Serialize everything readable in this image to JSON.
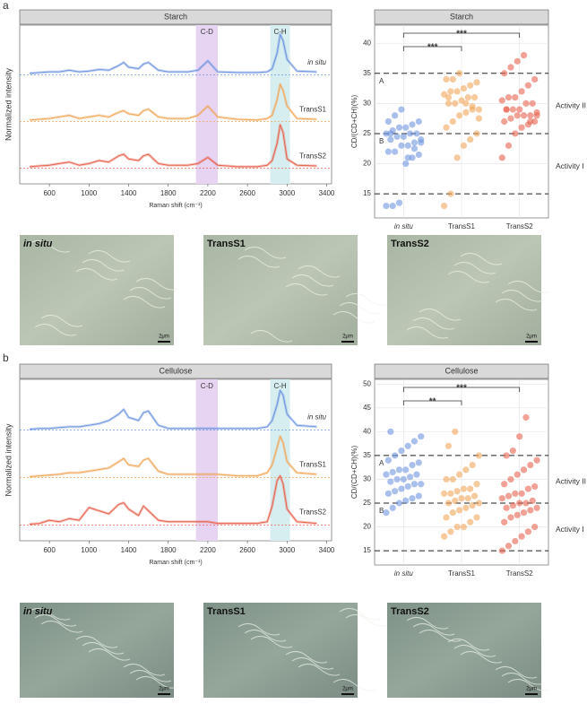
{
  "panels": [
    {
      "label": "a",
      "micrographs": [
        "in situ",
        "TransS1",
        "TransS2"
      ],
      "scale_bar": "2μm"
    },
    {
      "label": "b",
      "micrographs": [
        "in situ",
        "TransS1",
        "TransS2"
      ],
      "scale_bar": "2μm"
    }
  ],
  "chart_data": [
    {
      "type": "line",
      "title": "Starch",
      "xlabel": "Raman shift (cm⁻¹)",
      "ylabel": "Normalized intensity",
      "x": [
        400,
        500,
        600,
        700,
        800,
        900,
        1000,
        1100,
        1200,
        1300,
        1350,
        1400,
        1500,
        1550,
        1600,
        1700,
        1800,
        2000,
        2100,
        2200,
        2300,
        2500,
        2700,
        2800,
        2850,
        2900,
        2930,
        2960,
        3000,
        3100,
        3300
      ],
      "xlim": [
        300,
        3450
      ],
      "xticks": [
        600,
        1000,
        1400,
        1800,
        2200,
        2600,
        3000,
        3400
      ],
      "ylim": [
        0,
        10.2
      ],
      "bands": [
        {
          "label": "C-D",
          "range": [
            2080,
            2300
          ],
          "color": "#e7d3f2"
        },
        {
          "label": "C-H",
          "range": [
            2830,
            3030
          ],
          "color": "#d7eef0"
        }
      ],
      "series": [
        {
          "name": "in situ",
          "color": "#6f95e0",
          "baseline": 7,
          "values": [
            7.1,
            7.15,
            7.2,
            7.2,
            7.3,
            7.2,
            7.25,
            7.35,
            7.3,
            7.6,
            7.8,
            7.5,
            7.4,
            7.7,
            7.8,
            7.3,
            7.2,
            7.2,
            7.3,
            7.9,
            7.2,
            7.15,
            7.15,
            7.2,
            7.4,
            8.4,
            9.6,
            9.2,
            8,
            7.25,
            7.2
          ]
        },
        {
          "name": "TransS1",
          "color": "#f0a65a",
          "baseline": 4,
          "values": [
            4.1,
            4.15,
            4.2,
            4.3,
            4.4,
            4.2,
            4.3,
            4.4,
            4.3,
            4.6,
            4.7,
            4.5,
            4.4,
            4.7,
            4.8,
            4.3,
            4.2,
            4.2,
            4.4,
            5,
            4.3,
            4.15,
            4.1,
            4.2,
            4.4,
            5.4,
            6.4,
            6,
            5,
            4.2,
            4.15
          ]
        },
        {
          "name": "TransS2",
          "color": "#e8624e",
          "baseline": 1,
          "values": [
            1.1,
            1.15,
            1.2,
            1.3,
            1.4,
            1.2,
            1.3,
            1.5,
            1.4,
            1.8,
            1.9,
            1.6,
            1.5,
            1.8,
            1.9,
            1.3,
            1.2,
            1.2,
            1.3,
            1.7,
            1.2,
            1.1,
            1.1,
            1.2,
            1.5,
            2.6,
            3.8,
            3.3,
            1.6,
            1.2,
            1.15
          ]
        }
      ]
    },
    {
      "type": "strip",
      "title": "Starch",
      "ylabel": "CD/(CD+CH)(%)",
      "categories": [
        "in situ",
        "TransS1",
        "TransS2"
      ],
      "ylim": [
        11,
        43
      ],
      "yticks": [
        15,
        20,
        25,
        30,
        35,
        40
      ],
      "grid": true,
      "regions": [
        {
          "range": [
            25,
            35
          ],
          "label": "A",
          "activity": "Activity II"
        },
        {
          "range": [
            15,
            25
          ],
          "label": "B",
          "activity": "Activity I"
        }
      ],
      "brackets": [
        {
          "pair": [
            "in situ",
            "TransS1"
          ],
          "label": "***"
        },
        {
          "pair": [
            "in situ",
            "TransS2"
          ],
          "label": "***"
        }
      ],
      "series": [
        {
          "name": "in situ",
          "color": "#6f95e0",
          "values": [
            13,
            13,
            13.5,
            20,
            21,
            21.5,
            22,
            22,
            23,
            23,
            23.5,
            24,
            24,
            24.5,
            24.5,
            25,
            25,
            25,
            25.5,
            26,
            26,
            26.5,
            27,
            27,
            28,
            29,
            21,
            22.5,
            23.5,
            25
          ]
        },
        {
          "name": "TransS1",
          "color": "#f0a65a",
          "values": [
            13,
            15,
            21,
            23,
            24,
            25,
            26,
            27,
            28,
            28.5,
            29,
            29,
            30,
            30,
            30.5,
            31,
            31,
            31.5,
            32,
            32,
            32.5,
            33,
            33.5,
            34,
            34,
            35,
            30,
            29.5,
            27.5,
            31
          ]
        },
        {
          "name": "TransS2",
          "color": "#e8624e",
          "values": [
            21,
            23,
            25,
            26,
            26.5,
            27,
            27,
            27.5,
            28,
            28,
            28,
            28.5,
            29,
            29,
            29,
            30,
            30,
            30.5,
            31,
            31,
            32,
            33,
            34,
            35,
            36,
            37,
            38,
            27,
            28,
            29
          ]
        }
      ]
    },
    {
      "type": "line",
      "title": "Cellulose",
      "xlabel": "Raman shift (cm⁻¹)",
      "ylabel": "Normalized intensity",
      "x": [
        400,
        500,
        600,
        700,
        800,
        900,
        1000,
        1100,
        1200,
        1300,
        1350,
        1400,
        1500,
        1550,
        1600,
        1700,
        1800,
        2000,
        2100,
        2200,
        2300,
        2500,
        2700,
        2800,
        2850,
        2900,
        2930,
        2960,
        3000,
        3100,
        3300
      ],
      "xlim": [
        300,
        3450
      ],
      "xticks": [
        600,
        1000,
        1400,
        1800,
        2200,
        2600,
        3000,
        3400
      ],
      "ylim": [
        0,
        10.2
      ],
      "bands": [
        {
          "label": "C-D",
          "range": [
            2080,
            2300
          ],
          "color": "#e7d3f2"
        },
        {
          "label": "C-H",
          "range": [
            2830,
            3030
          ],
          "color": "#d7eef0"
        }
      ],
      "series": [
        {
          "name": "in situ",
          "color": "#6f95e0",
          "baseline": 7,
          "values": [
            7.05,
            7.1,
            7.1,
            7.15,
            7.2,
            7.2,
            7.3,
            7.4,
            7.6,
            8,
            8.3,
            7.8,
            7.6,
            8.1,
            8.2,
            7.3,
            7.1,
            7.1,
            7.1,
            7.1,
            7.1,
            7.1,
            7.1,
            7.2,
            7.6,
            8.6,
            9.5,
            9.2,
            8,
            7.3,
            7.2
          ]
        },
        {
          "name": "TransS1",
          "color": "#f0a65a",
          "baseline": 4,
          "values": [
            4.05,
            4.1,
            4.15,
            4.2,
            4.3,
            4.3,
            4.4,
            4.5,
            4.6,
            5,
            5.2,
            4.8,
            4.7,
            5.1,
            5.2,
            4.4,
            4.2,
            4.2,
            4.2,
            4.2,
            4.2,
            4.1,
            4.1,
            4.3,
            4.8,
            5.9,
            6.6,
            6.2,
            5,
            4.3,
            4.2
          ]
        },
        {
          "name": "TransS2",
          "color": "#e8624e",
          "baseline": 1,
          "values": [
            1.05,
            1.1,
            1.3,
            1.2,
            1.4,
            1.3,
            2.1,
            1.9,
            1.7,
            2.3,
            2.4,
            2,
            1.6,
            2.2,
            1.9,
            1.3,
            1.2,
            1.2,
            1.2,
            1.2,
            1.1,
            1.1,
            1.1,
            1.2,
            2.2,
            3.8,
            4.1,
            3.6,
            2,
            1.2,
            1.1
          ]
        }
      ]
    },
    {
      "type": "strip",
      "title": "Cellulose",
      "ylabel": "CD/(CD+CH)(%)",
      "categories": [
        "in situ",
        "TransS1",
        "TransS2"
      ],
      "ylim": [
        12,
        51
      ],
      "yticks": [
        15,
        20,
        25,
        30,
        35,
        40,
        45,
        50
      ],
      "grid": true,
      "regions": [
        {
          "range": [
            25,
            35
          ],
          "label": "A",
          "activity": "Activity II"
        },
        {
          "range": [
            15,
            25
          ],
          "label": "B",
          "activity": "Activity I"
        }
      ],
      "brackets": [
        {
          "pair": [
            "in situ",
            "TransS1"
          ],
          "label": "**"
        },
        {
          "pair": [
            "in situ",
            "TransS2"
          ],
          "label": "***"
        }
      ],
      "series": [
        {
          "name": "in situ",
          "color": "#6f95e0",
          "values": [
            23,
            24,
            25,
            25.5,
            26,
            26.5,
            27,
            27.5,
            28,
            28.5,
            29,
            29,
            29.5,
            30,
            30,
            30.5,
            31,
            31,
            31.5,
            32,
            32,
            33,
            33.5,
            34,
            35,
            36,
            37,
            38,
            39,
            40
          ]
        },
        {
          "name": "TransS1",
          "color": "#f0a65a",
          "values": [
            18,
            19,
            20,
            20,
            21,
            22,
            22,
            23,
            23.5,
            24,
            24.5,
            25,
            25,
            25.5,
            26,
            26,
            26.5,
            27,
            27,
            27.5,
            28,
            28,
            29,
            30,
            30,
            31,
            32,
            33,
            35,
            37,
            40
          ]
        },
        {
          "name": "TransS2",
          "color": "#e8624e",
          "values": [
            15,
            16,
            17,
            18,
            19,
            20,
            21,
            22,
            22.5,
            23,
            23.5,
            24,
            24,
            24.5,
            25,
            25,
            25.5,
            26,
            26.5,
            27,
            27,
            28,
            28.5,
            29,
            30,
            31,
            32,
            33,
            34,
            35,
            36,
            39,
            43
          ]
        }
      ]
    }
  ]
}
